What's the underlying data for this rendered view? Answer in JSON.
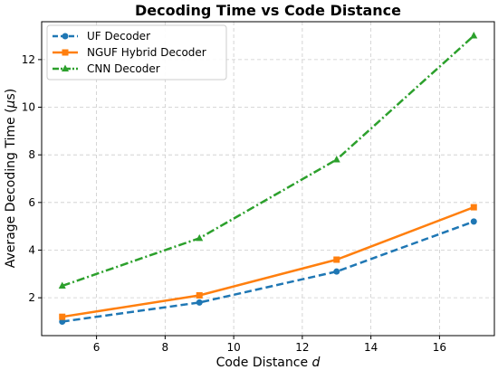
{
  "chart_data": {
    "type": "line",
    "title": "Decoding Time vs Code Distance",
    "xlabel": "Code Distance",
    "xlabel_var": "d",
    "ylabel_prefix": "Average Decoding Time (",
    "ylabel_mu": "μ",
    "ylabel_suffix": "s)",
    "x": [
      5,
      9,
      13,
      17
    ],
    "xlim": [
      4.4,
      17.6
    ],
    "ylim": [
      0.41,
      13.59
    ],
    "xticks": [
      6,
      8,
      10,
      12,
      14,
      16
    ],
    "yticks": [
      2,
      4,
      6,
      8,
      10,
      12
    ],
    "grid": true,
    "legend_position": "top-left",
    "series": [
      {
        "name": "UF Decoder",
        "values": [
          1.0,
          1.8,
          3.1,
          5.2
        ],
        "color": "#1f77b4",
        "marker": "circle",
        "linestyle": "dashed"
      },
      {
        "name": "NGUF Hybrid Decoder",
        "values": [
          1.2,
          2.1,
          3.6,
          5.8
        ],
        "color": "#ff7f0e",
        "marker": "square",
        "linestyle": "solid"
      },
      {
        "name": "CNN Decoder",
        "values": [
          2.5,
          4.5,
          7.8,
          13.0
        ],
        "color": "#2ca02c",
        "marker": "triangle",
        "linestyle": "dashdot"
      }
    ]
  }
}
